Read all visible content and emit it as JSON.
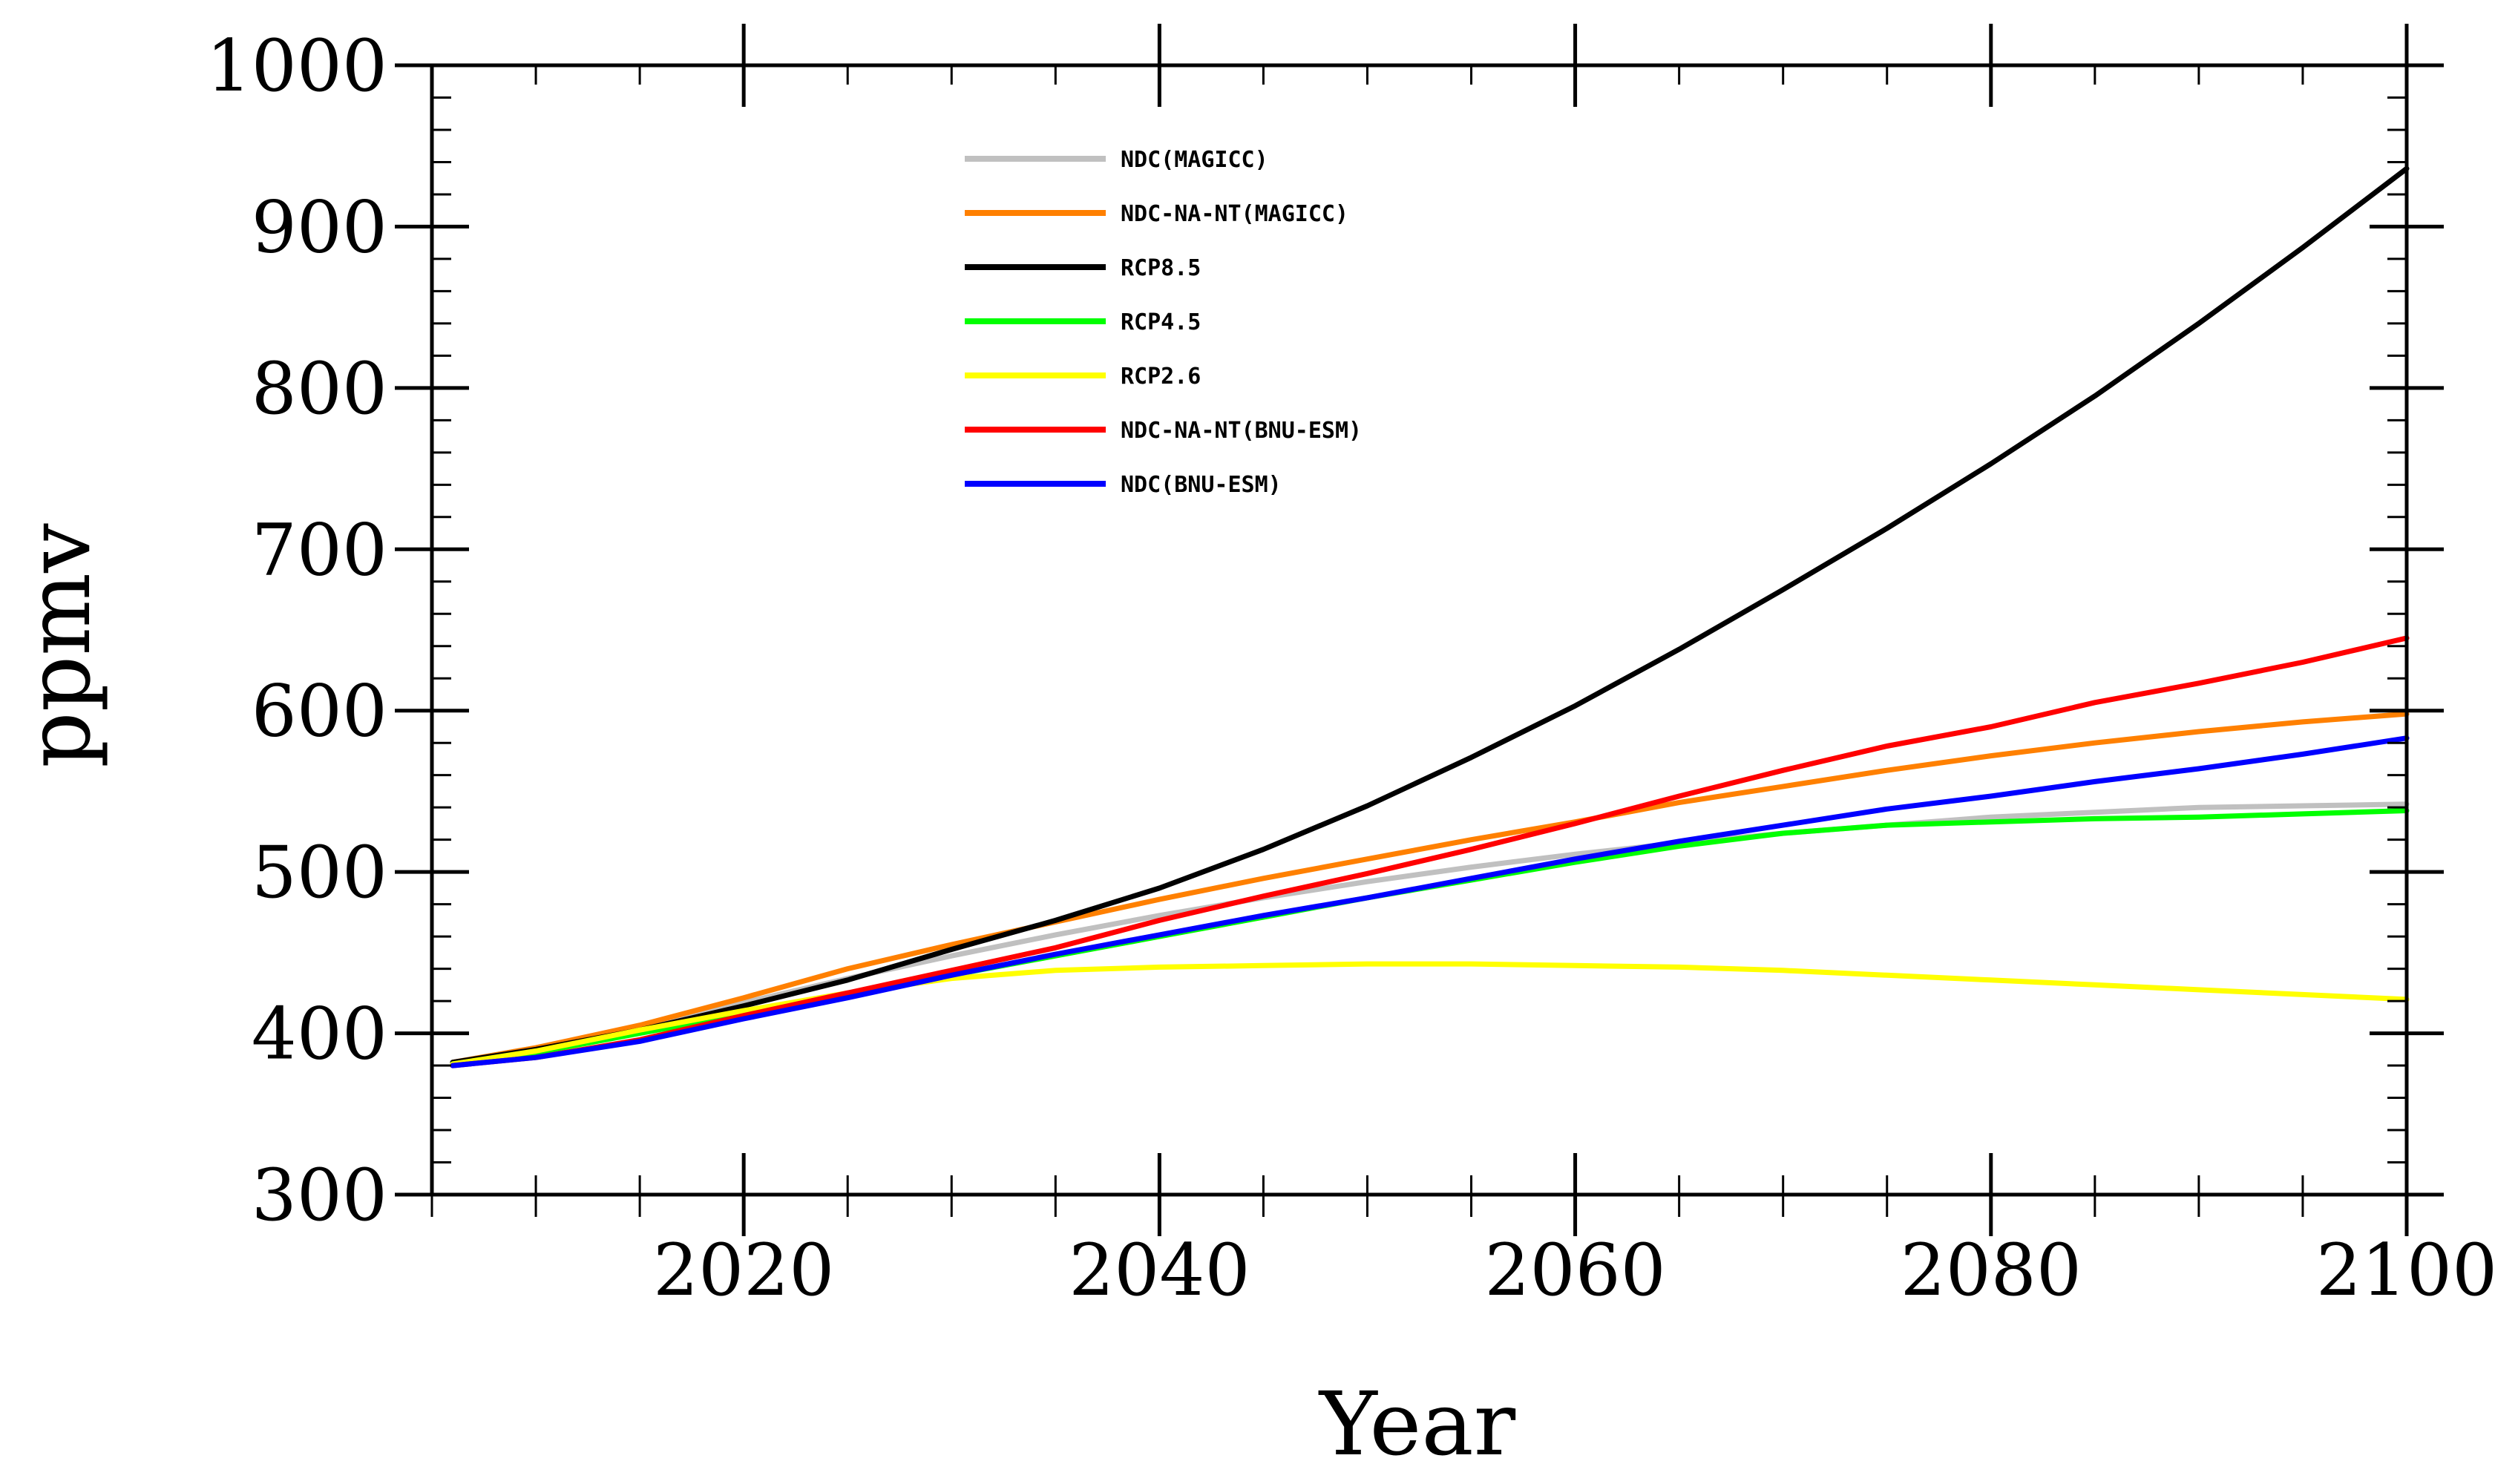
{
  "chart_data": {
    "type": "line",
    "title": "",
    "xlabel": "Year",
    "ylabel": "ppmv",
    "xlim": [
      2005,
      2100
    ],
    "ylim": [
      300,
      1000
    ],
    "x_ticks": [
      2020,
      2040,
      2060,
      2080,
      2100
    ],
    "y_ticks": [
      300,
      400,
      500,
      600,
      700,
      800,
      900,
      1000
    ],
    "legend_position": "top-center",
    "x": [
      2006,
      2010,
      2015,
      2020,
      2025,
      2030,
      2035,
      2040,
      2045,
      2050,
      2055,
      2060,
      2065,
      2070,
      2075,
      2080,
      2085,
      2090,
      2095,
      2100
    ],
    "series": [
      {
        "name": "NDC(MAGICC)",
        "color": "#c0c0c0",
        "values": [
          382,
          391,
          404,
          419,
          434,
          448,
          461,
          473,
          484,
          494,
          503,
          511,
          518,
          524,
          529,
          534,
          537,
          540,
          541,
          542
        ]
      },
      {
        "name": "NDC-NA-NT(MAGICC)",
        "color": "#ff8000",
        "values": [
          382,
          391,
          405,
          422,
          440,
          455,
          469,
          483,
          496,
          508,
          520,
          531,
          543,
          553,
          563,
          572,
          580,
          587,
          593,
          598
        ]
      },
      {
        "name": "RCP8.5",
        "color": "#000000",
        "values": [
          382,
          390,
          402,
          417,
          433,
          452,
          470,
          490,
          514,
          541,
          571,
          603,
          638,
          675,
          713,
          753,
          795,
          840,
          887,
          936
        ]
      },
      {
        "name": "RCP4.5",
        "color": "#00ff00",
        "values": [
          381,
          388,
          400,
          412,
          424,
          436,
          448,
          460,
          472,
          484,
          495,
          506,
          516,
          524,
          529,
          531,
          533,
          534,
          536,
          538
        ]
      },
      {
        "name": "RCP2.6",
        "color": "#ffff00",
        "values": [
          381,
          389,
          402,
          414,
          425,
          434,
          439,
          441,
          442,
          443,
          443,
          442,
          441,
          439,
          436,
          433,
          430,
          427,
          424,
          421
        ]
      },
      {
        "name": "NDC-NA-NT(BNU-ESM)",
        "color": "#ff0000",
        "values": [
          380,
          385,
          396,
          411,
          425,
          439,
          453,
          470,
          485,
          499,
          514,
          530,
          547,
          563,
          578,
          590,
          605,
          617,
          630,
          645
        ]
      },
      {
        "name": "NDC(BNU-ESM)",
        "color": "#0000ff",
        "values": [
          380,
          385,
          395,
          409,
          422,
          436,
          449,
          461,
          473,
          484,
          496,
          508,
          519,
          529,
          539,
          547,
          556,
          564,
          573,
          583
        ]
      }
    ]
  }
}
